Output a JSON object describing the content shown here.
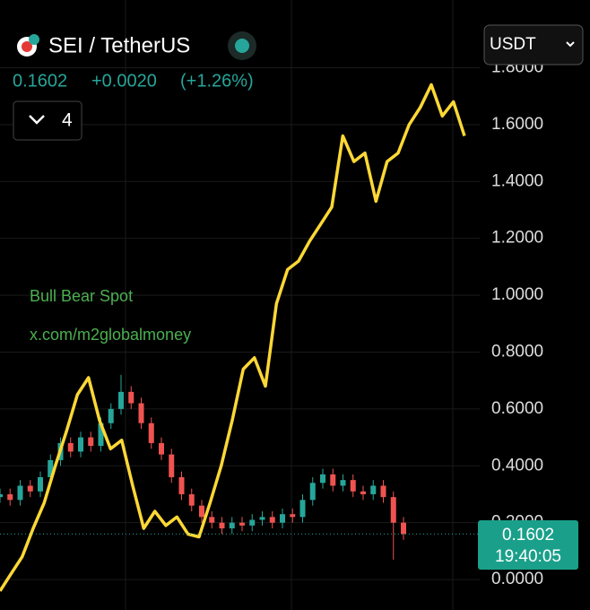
{
  "chart_data": {
    "type": "candlestick",
    "symbol": "SEI / TetherUS",
    "price": "0.1602",
    "change": "+0.0020",
    "change_pct": "(+1.26%)",
    "indicator_count": "4",
    "currency": "USDT",
    "watermark": [
      "Bull Bear Spot",
      "x.com/m2globalmoney"
    ],
    "last_price": 0.1602,
    "last_time": "19:40:05",
    "ylim": [
      -0.107,
      2.038
    ],
    "yticks": [
      {
        "value": 0,
        "label": "0.0000"
      },
      {
        "value": 0.2,
        "label": "0.2000"
      },
      {
        "value": 0.4,
        "label": "0.4000"
      },
      {
        "value": 0.6,
        "label": "0.6000"
      },
      {
        "value": 0.8,
        "label": "0.8000"
      },
      {
        "value": 1,
        "label": "1.0000"
      },
      {
        "value": 1.2,
        "label": "1.2000"
      },
      {
        "value": 1.4,
        "label": "1.4000"
      },
      {
        "value": 1.6,
        "label": "1.6000"
      },
      {
        "value": 1.8,
        "label": "1.8000"
      }
    ],
    "grid": true,
    "up_color": "#26a69a",
    "down_color": "#ef5350",
    "open": [
      0.29,
      0.3,
      0.28,
      0.33,
      0.31,
      0.36,
      0.42,
      0.48,
      0.45,
      0.5,
      0.47,
      0.55,
      0.6,
      0.66,
      0.62,
      0.55,
      0.48,
      0.44,
      0.36,
      0.3,
      0.26,
      0.22,
      0.2,
      0.18,
      0.2,
      0.19,
      0.21,
      0.22,
      0.2,
      0.23,
      0.22,
      0.28,
      0.34,
      0.37,
      0.33,
      0.35,
      0.31,
      0.3,
      0.33,
      0.29,
      0.2
    ],
    "high": [
      0.32,
      0.32,
      0.35,
      0.35,
      0.38,
      0.44,
      0.5,
      0.5,
      0.52,
      0.52,
      0.57,
      0.62,
      0.72,
      0.68,
      0.64,
      0.57,
      0.5,
      0.46,
      0.38,
      0.32,
      0.28,
      0.24,
      0.22,
      0.22,
      0.22,
      0.23,
      0.24,
      0.24,
      0.25,
      0.25,
      0.3,
      0.36,
      0.39,
      0.39,
      0.37,
      0.37,
      0.33,
      0.35,
      0.35,
      0.31,
      0.22
    ],
    "low": [
      0.27,
      0.26,
      0.26,
      0.29,
      0.29,
      0.34,
      0.4,
      0.43,
      0.43,
      0.45,
      0.45,
      0.53,
      0.58,
      0.6,
      0.53,
      0.46,
      0.42,
      0.34,
      0.28,
      0.24,
      0.2,
      0.18,
      0.16,
      0.16,
      0.17,
      0.17,
      0.19,
      0.18,
      0.18,
      0.2,
      0.2,
      0.26,
      0.32,
      0.31,
      0.31,
      0.29,
      0.28,
      0.28,
      0.27,
      0.07,
      0.14
    ],
    "close": [
      0.3,
      0.28,
      0.33,
      0.31,
      0.36,
      0.42,
      0.48,
      0.45,
      0.5,
      0.47,
      0.55,
      0.6,
      0.66,
      0.62,
      0.55,
      0.48,
      0.44,
      0.36,
      0.3,
      0.26,
      0.22,
      0.2,
      0.18,
      0.2,
      0.19,
      0.21,
      0.22,
      0.2,
      0.23,
      0.22,
      0.28,
      0.34,
      0.37,
      0.33,
      0.35,
      0.31,
      0.3,
      0.33,
      0.29,
      0.2,
      0.16
    ],
    "overlay": {
      "color": "#fdd835",
      "values": [
        -0.04,
        0.02,
        0.08,
        0.18,
        0.27,
        0.4,
        0.52,
        0.65,
        0.71,
        0.56,
        0.46,
        0.49,
        0.33,
        0.18,
        0.24,
        0.19,
        0.22,
        0.16,
        0.15,
        0.27,
        0.4,
        0.56,
        0.74,
        0.78,
        0.68,
        0.97,
        1.09,
        1.12,
        1.19,
        1.25,
        1.31,
        1.56,
        1.47,
        1.5,
        1.33,
        1.47,
        1.5,
        1.6,
        1.66,
        1.74,
        1.63,
        1.68,
        1.56
      ]
    }
  }
}
